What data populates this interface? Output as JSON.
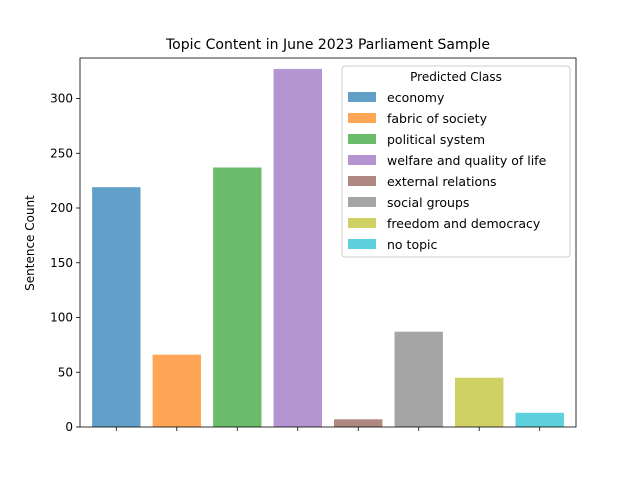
{
  "chart_data": {
    "type": "bar",
    "title": "Topic Content in June 2023 Parliament Sample",
    "xlabel": "",
    "ylabel": "Sentence Count",
    "ylim": [
      0,
      337
    ],
    "yticks": [
      0,
      50,
      100,
      150,
      200,
      250,
      300
    ],
    "categories": [
      "economy",
      "fabric of society",
      "political system",
      "welfare and quality of life",
      "external relations",
      "social groups",
      "freedom and democracy",
      "no topic"
    ],
    "values": [
      219,
      66,
      237,
      327,
      7,
      87,
      45,
      13
    ],
    "colors": [
      "#1f77b4",
      "#ff7f0e",
      "#2ca02c",
      "#9467bd",
      "#8c564b",
      "#7f7f7f",
      "#bcbd22",
      "#17becf"
    ],
    "bar_opacity": 0.7,
    "grid": false,
    "legend": {
      "title": "Predicted Class",
      "placement": "top-right",
      "entries": [
        "economy",
        "fabric of society",
        "political system",
        "welfare and quality of life",
        "external relations",
        "social groups",
        "freedom and democracy",
        "no topic"
      ]
    }
  }
}
